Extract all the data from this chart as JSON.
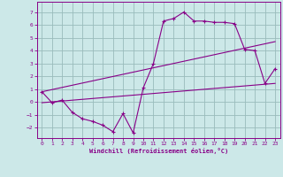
{
  "xlabel": "Windchill (Refroidissement éolien,°C)",
  "background_color": "#cce8e8",
  "line_color": "#880088",
  "grid_color": "#99bbbb",
  "spine_color": "#880088",
  "x_ticks": [
    0,
    1,
    2,
    3,
    4,
    5,
    6,
    7,
    8,
    9,
    10,
    11,
    12,
    13,
    14,
    15,
    16,
    17,
    18,
    19,
    20,
    21,
    22,
    23
  ],
  "y_ticks": [
    -2,
    -1,
    0,
    1,
    2,
    3,
    4,
    5,
    6,
    7
  ],
  "xlim": [
    -0.5,
    23.5
  ],
  "ylim": [
    -2.8,
    7.8
  ],
  "series1_x": [
    0,
    1,
    2,
    3,
    4,
    5,
    6,
    7,
    8,
    9,
    10,
    11,
    12,
    13,
    14,
    15,
    16,
    17,
    18,
    19,
    20,
    21,
    22,
    23
  ],
  "series1_y": [
    0.8,
    -0.05,
    0.15,
    -0.8,
    -1.3,
    -1.5,
    -1.8,
    -2.3,
    -0.9,
    -2.4,
    1.1,
    3.0,
    6.3,
    6.5,
    7.0,
    6.3,
    6.3,
    6.2,
    6.2,
    6.1,
    4.1,
    4.0,
    1.45,
    2.6
  ],
  "series2_x": [
    0,
    23
  ],
  "series2_y": [
    0.8,
    4.7
  ],
  "series3_x": [
    0,
    23
  ],
  "series3_y": [
    -0.05,
    1.45
  ]
}
